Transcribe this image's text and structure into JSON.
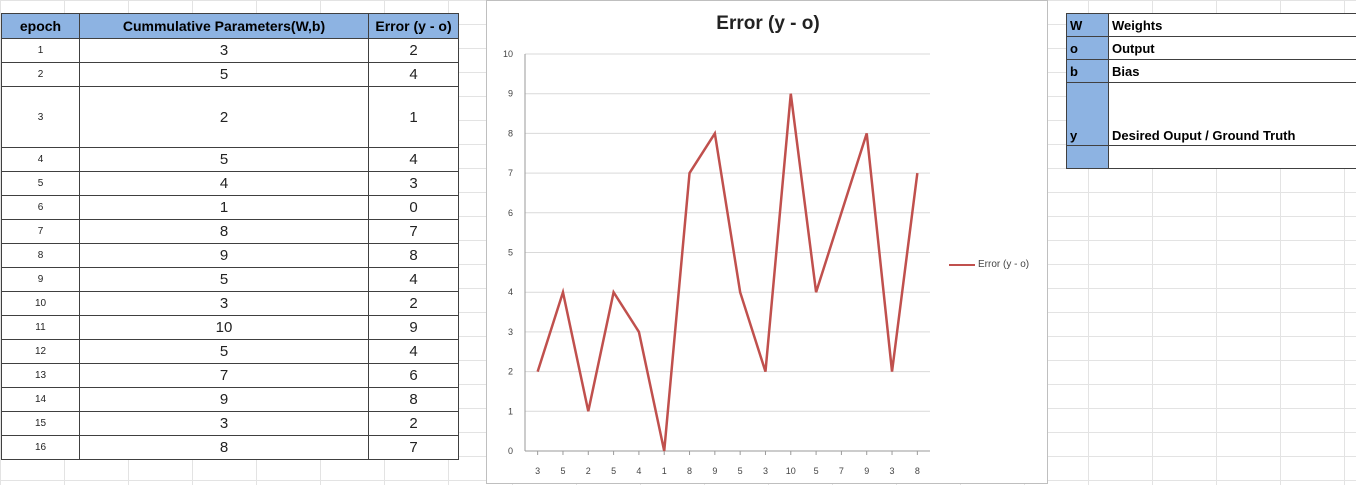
{
  "table": {
    "headers": [
      "epoch",
      "Cummulative Parameters(W,b)",
      "Error (y - o)"
    ],
    "rows": [
      {
        "epoch": "1",
        "params": "3",
        "error": "2"
      },
      {
        "epoch": "2",
        "params": "5",
        "error": "4"
      },
      {
        "epoch": "3",
        "params": "2",
        "error": "1"
      },
      {
        "epoch": "4",
        "params": "5",
        "error": "4"
      },
      {
        "epoch": "5",
        "params": "4",
        "error": "3"
      },
      {
        "epoch": "6",
        "params": "1",
        "error": "0"
      },
      {
        "epoch": "7",
        "params": "8",
        "error": "7"
      },
      {
        "epoch": "8",
        "params": "9",
        "error": "8"
      },
      {
        "epoch": "9",
        "params": "5",
        "error": "4"
      },
      {
        "epoch": "10",
        "params": "3",
        "error": "2"
      },
      {
        "epoch": "11",
        "params": "10",
        "error": "9"
      },
      {
        "epoch": "12",
        "params": "5",
        "error": "4"
      },
      {
        "epoch": "13",
        "params": "7",
        "error": "6"
      },
      {
        "epoch": "14",
        "params": "9",
        "error": "8"
      },
      {
        "epoch": "15",
        "params": "3",
        "error": "2"
      },
      {
        "epoch": "16",
        "params": "8",
        "error": "7"
      }
    ]
  },
  "legend_table": {
    "rows": [
      {
        "key": "W",
        "value": "Weights"
      },
      {
        "key": "o",
        "value": "Output"
      },
      {
        "key": "b",
        "value": "Bias"
      },
      {
        "key": "y",
        "value": "Desired Ouput / Ground Truth"
      },
      {
        "key": "",
        "value": ""
      }
    ]
  },
  "chart_data": {
    "type": "line",
    "title": "Error (y - o)",
    "categories": [
      "3",
      "5",
      "2",
      "5",
      "4",
      "1",
      "8",
      "9",
      "5",
      "3",
      "10",
      "5",
      "7",
      "9",
      "3",
      "8"
    ],
    "series": [
      {
        "name": "Error (y - o)",
        "values": [
          2,
          4,
          1,
          4,
          3,
          0,
          7,
          8,
          4,
          2,
          9,
          4,
          6,
          8,
          2,
          7
        ],
        "color": "#c0504d"
      }
    ],
    "ylim": [
      0,
      10
    ],
    "yticks": [
      0,
      1,
      2,
      3,
      4,
      5,
      6,
      7,
      8,
      9,
      10
    ],
    "grid": true,
    "legend": "right"
  },
  "colors": {
    "header_fill": "#8db3e2",
    "line": "#c0504d",
    "gridline": "#d9d9d9"
  }
}
